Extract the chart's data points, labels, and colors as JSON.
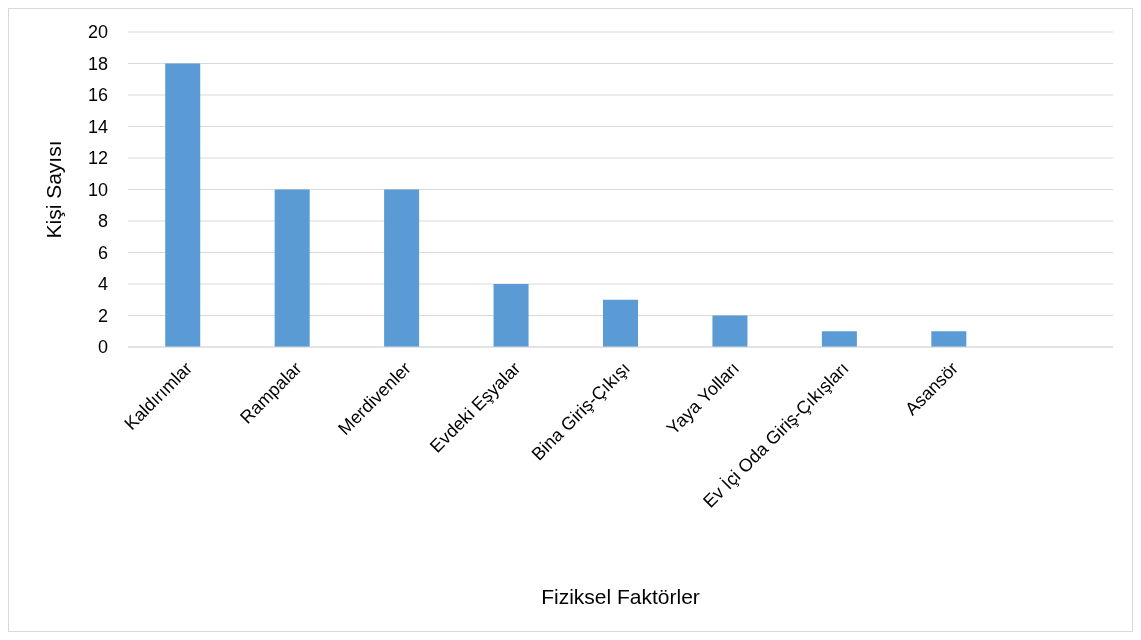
{
  "chart_data": {
    "type": "bar",
    "xlabel": "Fiziksel Faktörler",
    "ylabel": "Kişi Sayısı",
    "categories": [
      "Kaldırımlar",
      "Rampalar",
      "Merdivenler",
      "Evdeki Eşyalar",
      "Bina Giriş-Çıkışı",
      "Yaya Yolları",
      "Ev İçi Oda Giriş-Çıkışları",
      "Asansör",
      null
    ],
    "values": [
      18,
      10,
      10,
      4,
      3,
      2,
      1,
      1,
      null
    ],
    "color": "#5b9bd5",
    "ylim": [
      0,
      20
    ],
    "yticks": [
      0,
      2,
      4,
      6,
      8,
      10,
      12,
      14,
      16,
      18,
      20
    ],
    "grid": "y"
  }
}
